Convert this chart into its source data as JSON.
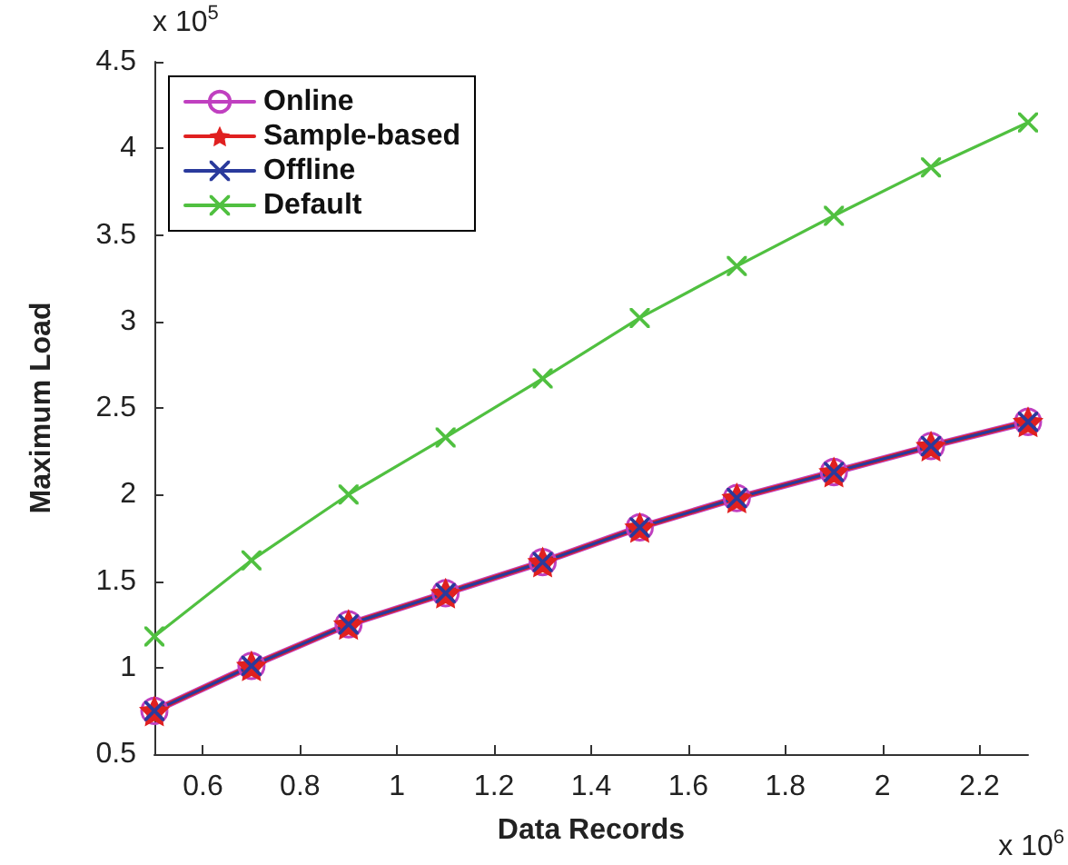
{
  "chart_data": {
    "type": "line",
    "xlabel": "Data Records",
    "ylabel": "Maximum Load",
    "x": [
      0.5,
      0.7,
      0.9,
      1.1,
      1.3,
      1.5,
      1.7,
      1.9,
      2.1,
      2.3
    ],
    "series": [
      {
        "name": "Online",
        "color": "#c040c0",
        "marker": "circle",
        "values": [
          0.75,
          1.01,
          1.25,
          1.43,
          1.61,
          1.81,
          1.98,
          2.13,
          2.28,
          2.42
        ]
      },
      {
        "name": "Sample-based",
        "color": "#e02020",
        "marker": "star",
        "values": [
          0.75,
          1.01,
          1.25,
          1.43,
          1.61,
          1.81,
          1.98,
          2.13,
          2.28,
          2.42
        ]
      },
      {
        "name": "Offline",
        "color": "#2a3a9c",
        "marker": "cross",
        "values": [
          0.75,
          1.01,
          1.25,
          1.43,
          1.61,
          1.81,
          1.98,
          2.13,
          2.28,
          2.42
        ]
      },
      {
        "name": "Default",
        "color": "#50c040",
        "marker": "cross",
        "values": [
          1.18,
          1.62,
          2.0,
          2.33,
          2.67,
          3.02,
          3.32,
          3.61,
          3.89,
          4.15
        ]
      }
    ],
    "xlim": [
      0.5,
      2.3
    ],
    "xticks": [
      0.6,
      0.8,
      1,
      1.2,
      1.4,
      1.6,
      1.8,
      2,
      2.2
    ],
    "ylim": [
      0.5,
      4.5
    ],
    "yticks": [
      0.5,
      1,
      1.5,
      2,
      2.5,
      3,
      3.5,
      4,
      4.5
    ],
    "annotations": [
      "x 10$^{5}$",
      "x 10$^{6}$"
    ],
    "grid": false,
    "legend": "top left",
    "line_style": "solid"
  }
}
